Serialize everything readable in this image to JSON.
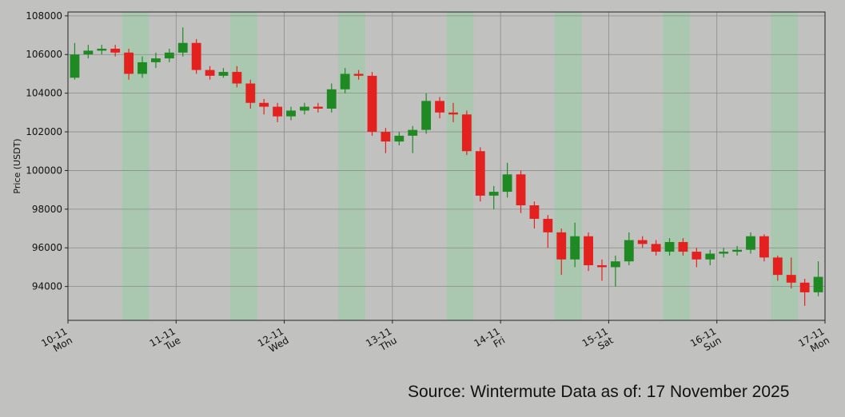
{
  "chart_data": {
    "type": "candlestick",
    "ylabel": "Price (USDT)",
    "source": "Source: Wintermute  Data as of: 17 November 2025",
    "xlim": [
      0,
      7
    ],
    "ylim": [
      92250,
      108200
    ],
    "xticks": [
      {
        "value": 0,
        "label": "10-11"
      },
      {
        "value": 1,
        "label": "11-11"
      },
      {
        "value": 2,
        "label": "12-11"
      },
      {
        "value": 3,
        "label": "13-11"
      },
      {
        "value": 4,
        "label": "14-11"
      },
      {
        "value": 5,
        "label": "15-11"
      },
      {
        "value": 6,
        "label": "16-11"
      },
      {
        "value": 7,
        "label": "17-11"
      }
    ],
    "xtick_days": [
      "Mon",
      "Tue",
      "Wed",
      "Thu",
      "Fri",
      "Sat",
      "Sun",
      "Mon"
    ],
    "yticks": [
      94000,
      96000,
      98000,
      100000,
      102000,
      104000,
      106000,
      108000
    ],
    "grid": true,
    "up_color": "#1f8a24",
    "down_color": "#e3221f",
    "band_color": "#8fd19e",
    "highlight_bands": [
      [
        0.5,
        0.75
      ],
      [
        1.5,
        1.75
      ],
      [
        2.5,
        2.75
      ],
      [
        3.5,
        3.75
      ],
      [
        4.5,
        4.75
      ],
      [
        5.5,
        5.75
      ],
      [
        6.5,
        6.75
      ]
    ],
    "x": [
      0,
      0.125,
      0.25,
      0.375,
      0.5,
      0.625,
      0.75,
      0.875,
      1,
      1.125,
      1.25,
      1.375,
      1.5,
      1.625,
      1.75,
      1.875,
      2,
      2.125,
      2.25,
      2.375,
      2.5,
      2.625,
      2.75,
      2.875,
      3,
      3.125,
      3.25,
      3.375,
      3.5,
      3.625,
      3.75,
      3.875,
      4,
      4.125,
      4.25,
      4.375,
      4.5,
      4.625,
      4.75,
      4.875,
      5,
      5.125,
      5.25,
      5.375,
      5.5,
      5.625,
      5.75,
      5.875,
      6,
      6.125,
      6.25,
      6.375,
      6.5,
      6.625,
      6.75,
      6.875
    ],
    "open": [
      104800,
      106000,
      106200,
      106300,
      106100,
      105000,
      105600,
      105800,
      106100,
      106600,
      105200,
      104900,
      105100,
      104500,
      103500,
      103300,
      102800,
      103100,
      103300,
      103200,
      104200,
      105000,
      104900,
      102000,
      101500,
      101800,
      102100,
      103600,
      103000,
      102900,
      101000,
      98700,
      98900,
      99800,
      98200,
      97500,
      96800,
      95400,
      96600,
      95100,
      95000,
      95300,
      96400,
      96200,
      95800,
      96300,
      95800,
      95400,
      95700,
      95800,
      95900,
      96600,
      95500,
      94600,
      94200,
      93700
    ],
    "high": [
      106600,
      106500,
      106500,
      106500,
      106300,
      105900,
      106100,
      106300,
      107400,
      106800,
      105400,
      105300,
      105400,
      104700,
      103700,
      103500,
      103300,
      103500,
      103500,
      104500,
      105300,
      105200,
      105100,
      102200,
      102000,
      102300,
      104000,
      103800,
      103500,
      103100,
      101200,
      99200,
      100400,
      100000,
      98400,
      97700,
      97000,
      97300,
      96800,
      95400,
      95600,
      96800,
      96600,
      96400,
      96500,
      96500,
      96000,
      95900,
      96000,
      96100,
      96800,
      96700,
      95600,
      95500,
      94400,
      95300
    ],
    "low": [
      104700,
      105800,
      106000,
      105900,
      104700,
      104800,
      105300,
      105600,
      105900,
      105000,
      104700,
      104800,
      104300,
      103200,
      102900,
      102500,
      102600,
      102900,
      103000,
      103000,
      104000,
      104700,
      101800,
      100900,
      101300,
      100900,
      101900,
      102700,
      102500,
      100800,
      98400,
      98000,
      98600,
      97800,
      97000,
      96000,
      94600,
      95000,
      94800,
      94300,
      94000,
      95100,
      96000,
      95600,
      95600,
      95600,
      95000,
      95100,
      95500,
      95600,
      95700,
      95300,
      94300,
      93900,
      93000,
      93500
    ],
    "close": [
      106000,
      106200,
      106300,
      106100,
      105000,
      105600,
      105800,
      106100,
      106600,
      105200,
      104900,
      105100,
      104500,
      103500,
      103300,
      102800,
      103100,
      103300,
      103200,
      104200,
      105000,
      104900,
      102000,
      101500,
      101800,
      102100,
      103600,
      103000,
      102900,
      101000,
      98700,
      98900,
      99800,
      98200,
      97500,
      96800,
      95400,
      96600,
      95100,
      95000,
      95300,
      96400,
      96200,
      95800,
      96300,
      95800,
      95400,
      95700,
      95800,
      95900,
      96600,
      95500,
      94600,
      94200,
      93700,
      94500
    ]
  }
}
